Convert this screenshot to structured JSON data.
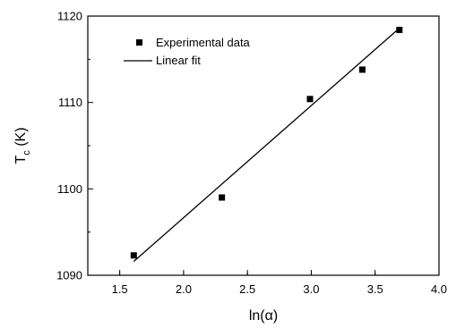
{
  "chart_data": {
    "type": "scatter",
    "xlabel": "ln(α)",
    "ylabel_main": "T",
    "ylabel_sub": "c",
    "ylabel_unit": " (K)",
    "xlim": [
      1.25,
      4.0
    ],
    "ylim": [
      1090,
      1120
    ],
    "x_ticks": [
      1.5,
      2.0,
      2.5,
      3.0,
      3.5,
      4.0
    ],
    "x_tick_labels": [
      "1.5",
      "2.0",
      "2.5",
      "3.0",
      "3.5",
      "4.0"
    ],
    "y_ticks": [
      1090,
      1100,
      1110,
      1120
    ],
    "y_tick_labels": [
      "1090",
      "1100",
      "1110",
      "1120"
    ],
    "grid": false,
    "legend_position": "top-left",
    "series": [
      {
        "name": "Experimental data",
        "kind": "markers",
        "marker": "square",
        "color": "#000000",
        "x": [
          1.61,
          2.3,
          2.99,
          3.4,
          3.69
        ],
        "y": [
          1092.3,
          1099.0,
          1110.4,
          1113.8,
          1118.4
        ]
      },
      {
        "name": "Linear fit",
        "kind": "line",
        "color": "#000000",
        "x": [
          1.61,
          3.69
        ],
        "y": [
          1091.6,
          1118.6
        ]
      }
    ]
  }
}
